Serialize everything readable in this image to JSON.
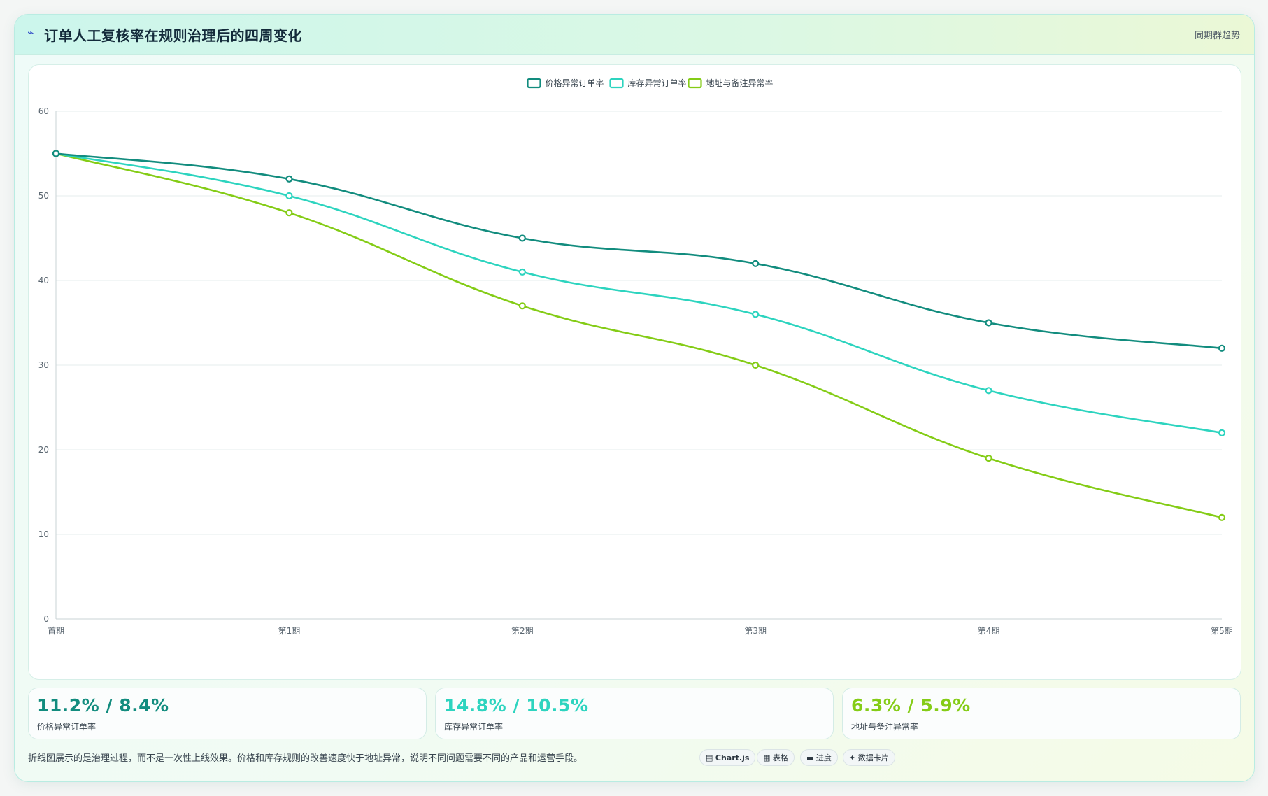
{
  "header": {
    "icon": "trend-icon",
    "title": "订单人工复核率在规则治理后的四周变化",
    "tag": "同期群趋势"
  },
  "chart_data": {
    "type": "line",
    "categories": [
      "首期",
      "第1期",
      "第2期",
      "第3期",
      "第4期",
      "第5期"
    ],
    "ylim": [
      0,
      60
    ],
    "yticks": [
      0,
      10,
      20,
      30,
      40,
      50,
      60
    ],
    "grid": true,
    "legend_position": "top-center",
    "series": [
      {
        "name": "价格异常订单率",
        "color": "#128c7e",
        "values": [
          55,
          52,
          45,
          42,
          35,
          32
        ]
      },
      {
        "name": "库存异常订单率",
        "color": "#2dd4bf",
        "values": [
          55,
          50,
          41,
          36,
          27,
          22
        ]
      },
      {
        "name": "地址与备注异常率",
        "color": "#84cc16",
        "values": [
          55,
          48,
          37,
          30,
          19,
          12
        ]
      }
    ]
  },
  "kpis": [
    {
      "value": "11.2% / 8.4%",
      "label": "价格异常订单率",
      "color": "#128c7e"
    },
    {
      "value": "14.8% / 10.5%",
      "label": "库存异常订单率",
      "color": "#2dd4bf"
    },
    {
      "value": "6.3% / 5.9%",
      "label": "地址与备注异常率",
      "color": "#84cc16"
    }
  ],
  "note": "折线图展示的是治理过程，而不是一次性上线效果。价格和库存规则的改善速度快于地址异常，说明不同问题需要不同的产品和运营手段。",
  "pills": [
    {
      "icon": "chart-icon",
      "glyph": "▤",
      "label": "Chart.js"
    },
    {
      "icon": "table-icon",
      "glyph": "▦",
      "label": "表格"
    },
    {
      "icon": "progress-icon",
      "glyph": "▬",
      "label": "进度"
    },
    {
      "icon": "sparkle-icon",
      "glyph": "✦",
      "label": "数据卡片"
    }
  ]
}
